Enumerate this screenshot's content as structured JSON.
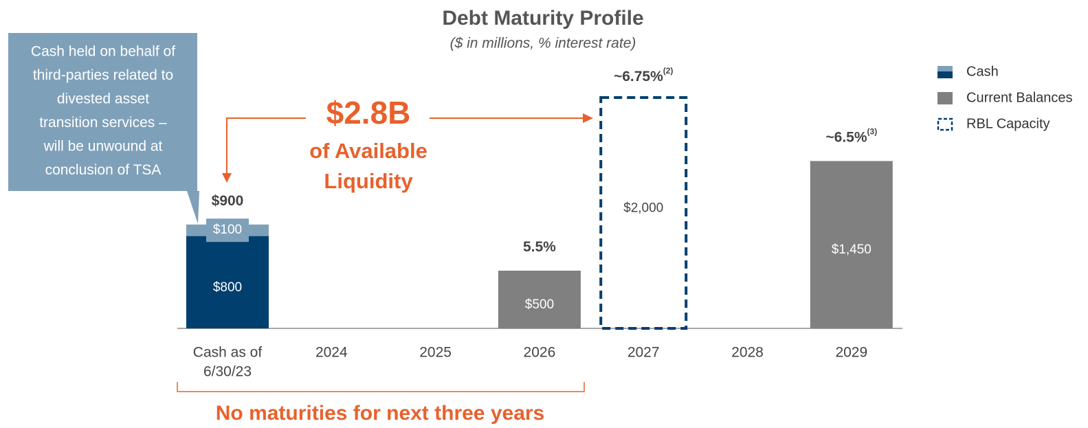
{
  "chart_data": {
    "type": "bar",
    "title": "Debt Maturity Profile",
    "subtitle": "($ in millions, % interest rate)",
    "categories": [
      [
        "Cash as of",
        "6/30/23"
      ],
      "2024",
      "2025",
      "2026",
      "2027",
      "2028",
      "2029"
    ],
    "ylim": [
      0,
      2000
    ],
    "series": [
      {
        "name": "Cash",
        "color": "#003f6e",
        "values": [
          800,
          null,
          null,
          null,
          null,
          null,
          null
        ],
        "value_labels": [
          "$800",
          null,
          null,
          null,
          null,
          null,
          null
        ]
      },
      {
        "color": "#7fa0b9",
        "values": [
          100,
          null,
          null,
          null,
          null,
          null,
          null
        ],
        "value_labels": [
          "$100",
          null,
          null,
          null,
          null,
          null,
          null
        ]
      },
      {
        "name": "Current Balances",
        "color": "#808080",
        "values": [
          null,
          null,
          null,
          500,
          null,
          null,
          1450
        ],
        "value_labels": [
          null,
          null,
          null,
          "$500",
          null,
          null,
          "$1,450"
        ]
      },
      {
        "name": "RBL Capacity",
        "color": "#003f6e",
        "style": "dashed",
        "values": [
          null,
          null,
          null,
          null,
          2000,
          null,
          null
        ],
        "value_labels": [
          null,
          null,
          null,
          null,
          "$2,000",
          null,
          null
        ]
      }
    ],
    "top_labels": [
      "$900",
      null,
      null,
      "5.5%",
      "~6.75%",
      null,
      "~6.5%"
    ],
    "top_label_notes": [
      null,
      null,
      null,
      null,
      "(2)",
      null,
      "(3)"
    ],
    "callout": [
      "Cash held on behalf of",
      "third-parties related to",
      "divested asset",
      "transition services –",
      "will be unwound at",
      "conclusion of TSA"
    ],
    "liquidity": {
      "amount": "$2.8B",
      "text": [
        "of Available",
        "Liquidity"
      ]
    },
    "bracket_note": "No maturities for next three years"
  }
}
